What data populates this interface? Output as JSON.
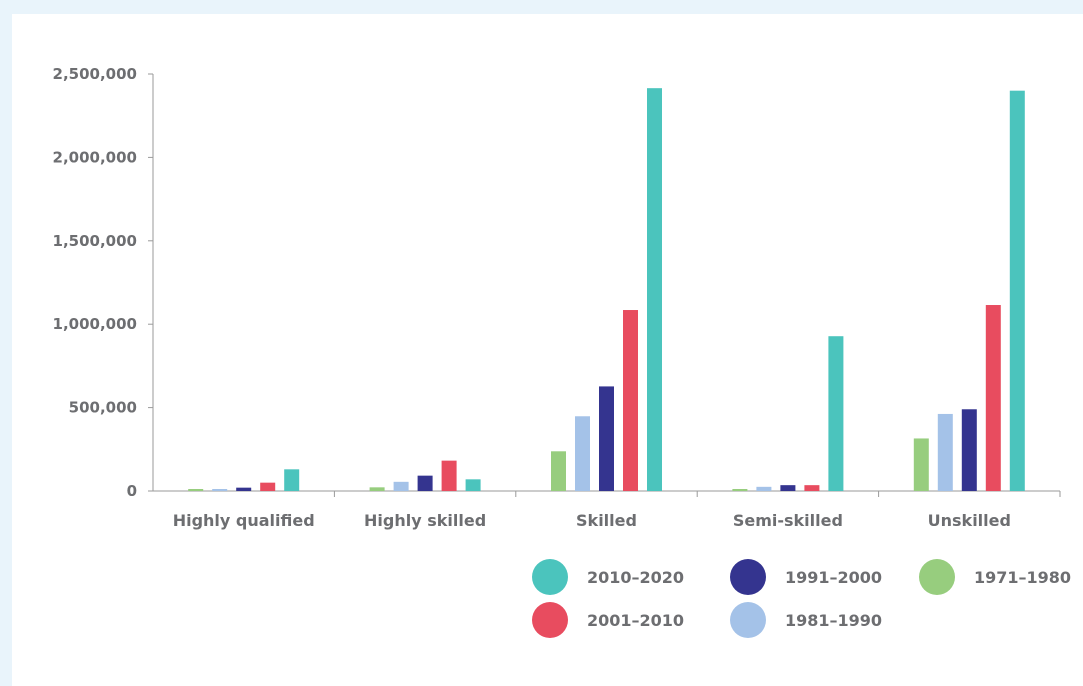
{
  "chart_data": {
    "type": "bar",
    "title": "",
    "xlabel": "",
    "ylabel": "",
    "ylim": [
      0,
      2500000
    ],
    "yticks": [
      0,
      500000,
      1000000,
      1500000,
      2000000,
      2500000
    ],
    "ytick_labels": [
      "0",
      "500,000",
      "1,000,000",
      "1,500,000",
      "2,000,000",
      "2,500,000"
    ],
    "categories": [
      "Highly  qualified",
      "Highly skilled",
      "Skilled",
      "Semi-skilled",
      "Unskilled"
    ],
    "series": [
      {
        "name": "1971–1980",
        "color": "#97cd7e",
        "values": [
          12000,
          22000,
          238000,
          12000,
          315000
        ]
      },
      {
        "name": "1981–1990",
        "color": "#a4c2e8",
        "values": [
          12000,
          55000,
          448000,
          25000,
          462000
        ]
      },
      {
        "name": "1991–2000",
        "color": "#34348f",
        "values": [
          20000,
          92000,
          627000,
          35000,
          490000
        ]
      },
      {
        "name": "2001–2010",
        "color": "#e84c5f",
        "values": [
          50000,
          182000,
          1085000,
          35000,
          1115000
        ]
      },
      {
        "name": "2010–2020",
        "color": "#4bc4bd",
        "values": [
          130000,
          70000,
          2415000,
          928000,
          2400000
        ]
      }
    ],
    "grid": false,
    "legend_position": "bottom-right"
  },
  "legend": {
    "items": [
      {
        "label": "2010–2020",
        "color": "#4bc4bd"
      },
      {
        "label": "1991–2000",
        "color": "#34348f"
      },
      {
        "label": "1971–1980",
        "color": "#97cd7e"
      },
      {
        "label": "2001–2010",
        "color": "#e84c5f"
      },
      {
        "label": "1981–1990",
        "color": "#a4c2e8"
      }
    ]
  }
}
